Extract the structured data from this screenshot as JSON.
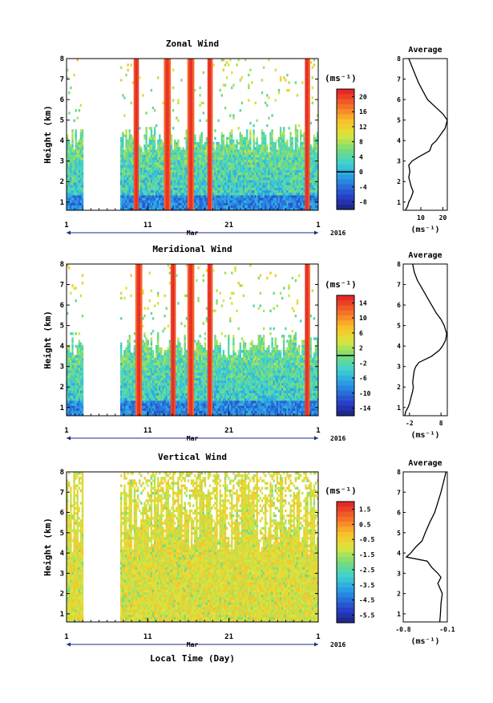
{
  "figure": {
    "date_axis_label": "Mar",
    "year_label": "2016",
    "xlabel": "Local Time (Day)",
    "avg_xlabel": "(ms⁻¹)",
    "cbar_unit": "(ms⁻¹)"
  },
  "chart_data": [
    {
      "type": "heatmap",
      "title": "Zonal Wind",
      "ylabel": "Height (km)",
      "x_ticks": [
        "1",
        "11",
        "21",
        "1"
      ],
      "x_range_days": [
        1,
        32
      ],
      "ylim": [
        0.6,
        8
      ],
      "y_ticks": [
        1,
        2,
        3,
        4,
        5,
        6,
        7,
        8
      ],
      "colorbar": {
        "unit": "(ms⁻¹)",
        "ticks": [
          "20",
          "16",
          "12",
          "8",
          "4",
          "0",
          "-4",
          "-8"
        ],
        "range": [
          -10,
          22
        ],
        "marked_level": 0
      },
      "data_presence_days": [
        [
          1,
          3
        ],
        [
          7.5,
          32
        ]
      ],
      "high_value_bursts_days": [
        9.5,
        13.3,
        16.2,
        18.5,
        30.5
      ],
      "average_profile": {
        "title": "Average",
        "xlim": [
          2,
          22
        ],
        "x_ticks": [
          "10",
          "20"
        ],
        "heights": [
          0.6,
          0.8,
          1.0,
          1.2,
          1.5,
          1.8,
          2.0,
          2.2,
          2.5,
          2.8,
          3.0,
          3.2,
          3.5,
          3.8,
          4.0,
          4.3,
          4.6,
          5.0,
          5.3,
          5.6,
          6.0,
          6.4,
          6.8,
          7.2,
          7.6,
          8.0
        ],
        "values": [
          3.0,
          4.0,
          4.5,
          5.5,
          6.5,
          5.5,
          5.0,
          4.5,
          5.0,
          4.5,
          6.0,
          9.0,
          14.0,
          15.0,
          17.0,
          19.0,
          21.0,
          22.0,
          20.0,
          17.0,
          13.0,
          11.0,
          9.0,
          7.5,
          6.0,
          4.5
        ]
      }
    },
    {
      "type": "heatmap",
      "title": "Meridional Wind",
      "ylabel": "Height (km)",
      "x_ticks": [
        "1",
        "11",
        "21",
        "1"
      ],
      "x_range_days": [
        1,
        32
      ],
      "ylim": [
        0.6,
        8
      ],
      "y_ticks": [
        1,
        2,
        3,
        4,
        5,
        6,
        7,
        8
      ],
      "colorbar": {
        "unit": "(ms⁻¹)",
        "ticks": [
          "14",
          "10",
          "6",
          "2",
          "-2",
          "-6",
          "-10",
          "-14"
        ],
        "range": [
          -16,
          16
        ],
        "marked_level": 0
      },
      "data_presence_days": [
        [
          1,
          3
        ],
        [
          7.5,
          32
        ]
      ],
      "high_value_bursts_days": [
        9.8,
        14.0,
        16.2,
        18.5,
        30.5
      ],
      "average_profile": {
        "title": "Average",
        "xlim": [
          -4,
          10
        ],
        "x_ticks": [
          "-2",
          "8"
        ],
        "heights": [
          0.6,
          0.8,
          1.0,
          1.2,
          1.5,
          1.8,
          2.0,
          2.2,
          2.5,
          2.8,
          3.0,
          3.2,
          3.5,
          3.8,
          4.0,
          4.3,
          4.6,
          5.0,
          5.3,
          5.6,
          6.0,
          6.4,
          6.8,
          7.2,
          7.6,
          8.0
        ],
        "values": [
          -3.5,
          -3.2,
          -2.5,
          -2.0,
          -1.5,
          -1.0,
          -0.8,
          -1.0,
          -0.8,
          -0.5,
          0.0,
          1.0,
          5.0,
          7.5,
          8.5,
          9.5,
          9.8,
          9.0,
          8.0,
          6.5,
          5.0,
          3.5,
          2.0,
          0.5,
          -0.5,
          -1.0
        ]
      }
    },
    {
      "type": "heatmap",
      "title": "Vertical Wind",
      "ylabel": "Height (km)",
      "x_ticks": [
        "1",
        "11",
        "21",
        "1"
      ],
      "x_range_days": [
        1,
        32
      ],
      "ylim": [
        0.6,
        8
      ],
      "y_ticks": [
        1,
        2,
        3,
        4,
        5,
        6,
        7,
        8
      ],
      "colorbar": {
        "unit": "(ms⁻¹)",
        "ticks": [
          "1.5",
          "0.5",
          "-0.5",
          "-1.5",
          "-2.5",
          "-3.5",
          "-4.5",
          "-5.5"
        ],
        "range": [
          -6,
          2
        ],
        "marked_level": null
      },
      "data_presence_days": [
        [
          1,
          3
        ],
        [
          7.5,
          32
        ]
      ],
      "high_value_bursts_days": [],
      "average_profile": {
        "title": "Average",
        "xlim": [
          -0.8,
          -0.1
        ],
        "x_ticks": [
          "-0.8",
          "-0.1"
        ],
        "heights": [
          0.6,
          1.0,
          1.5,
          2.0,
          2.5,
          2.8,
          3.0,
          3.3,
          3.6,
          3.8,
          4.0,
          4.3,
          4.6,
          5.0,
          5.5,
          6.0,
          6.5,
          7.0,
          7.5,
          8.0
        ],
        "values": [
          -0.22,
          -0.21,
          -0.2,
          -0.18,
          -0.25,
          -0.2,
          -0.25,
          -0.35,
          -0.42,
          -0.75,
          -0.68,
          -0.6,
          -0.5,
          -0.45,
          -0.38,
          -0.3,
          -0.25,
          -0.2,
          -0.16,
          -0.12
        ]
      }
    }
  ]
}
